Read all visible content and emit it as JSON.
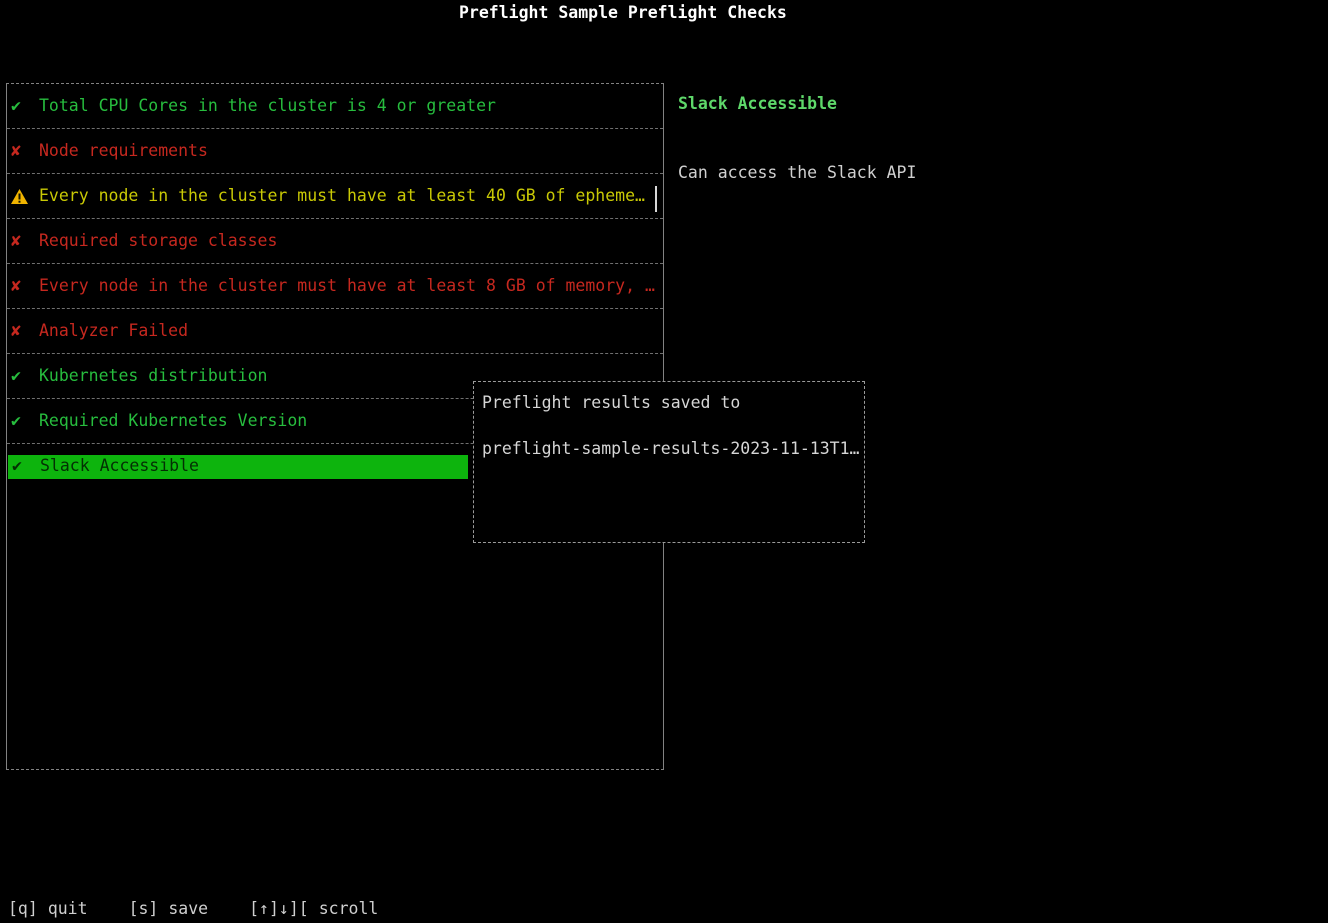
{
  "title": "Preflight Sample Preflight Checks",
  "glyphs": {
    "pass": "✔",
    "fail": "✘"
  },
  "checks": [
    {
      "status": "pass",
      "icon": "check-icon",
      "label": "Total CPU Cores in the cluster is 4 or greater",
      "selected": false
    },
    {
      "status": "fail",
      "icon": "x-icon",
      "label": "Node requirements",
      "selected": false
    },
    {
      "status": "warn",
      "icon": "warning-triangle-icon",
      "label": "Every node in the cluster must have at least 40 GB of epheme…",
      "selected": false
    },
    {
      "status": "fail",
      "icon": "x-icon",
      "label": "Required storage classes",
      "selected": false
    },
    {
      "status": "fail",
      "icon": "x-icon",
      "label": "Every node in the cluster must have at least 8 GB of memory, …",
      "selected": false
    },
    {
      "status": "fail",
      "icon": "x-icon",
      "label": "Analyzer Failed",
      "selected": false
    },
    {
      "status": "pass",
      "icon": "check-icon",
      "label": "Kubernetes distribution",
      "selected": false
    },
    {
      "status": "pass",
      "icon": "check-icon",
      "label": "Required Kubernetes Version",
      "selected": false
    },
    {
      "status": "pass",
      "icon": "check-icon",
      "label": "Slack Accessible",
      "selected": true
    }
  ],
  "detail": {
    "heading": "Slack Accessible",
    "body": "Can access the Slack API"
  },
  "modal": {
    "line1": "Preflight results saved to",
    "line2": "preflight-sample-results-2023-11-13T1…"
  },
  "footer": {
    "quit_key": "[q]",
    "quit_label": "quit",
    "save_key": "[s]",
    "save_label": "save",
    "scroll_key": "[↑]↓][",
    "scroll_label": "scroll"
  },
  "colors": {
    "background": "#000000",
    "pass_green": "#27bd3e",
    "fail_red": "#c6281f",
    "warn_yellow": "#c9c905",
    "warn_triangle": "#f0b400",
    "selected_bg": "#0db40d",
    "heading_green": "#5ed86a",
    "panel_border": "#828282",
    "modal_border": "#9a9a9a",
    "text_light": "#d0d0d0",
    "footer_text": "#cfcfcf"
  }
}
